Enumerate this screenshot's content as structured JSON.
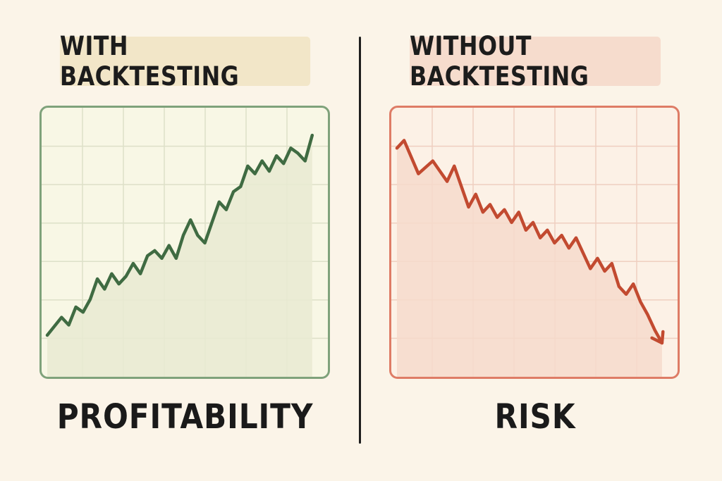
{
  "panels": [
    {
      "banner": "WITH BACKTESTING",
      "caption": "PROFITABILITY",
      "colors": {
        "line": "#3f6b42",
        "fill": "#e9ead2",
        "grid": "#dde0c8"
      },
      "icon": null
    },
    {
      "banner": "WITHOUT BACKTESTING",
      "caption": "RISK",
      "colors": {
        "line": "#c24a30",
        "fill": "#f6dacb",
        "grid": "#efcfc0"
      },
      "icon": "arrow-down-icon"
    }
  ],
  "chart_data": [
    {
      "type": "line",
      "trend": "up",
      "area_fill": true,
      "grid": true,
      "xlim": [
        0,
        38
      ],
      "ylim": [
        0,
        100
      ],
      "x": [
        0,
        2,
        3,
        4,
        5,
        6,
        7,
        8,
        9,
        10,
        11,
        12,
        13,
        14,
        15,
        16,
        17,
        18,
        19,
        20,
        21,
        22,
        23,
        24,
        25,
        26,
        27,
        28,
        29,
        30,
        31,
        32,
        33,
        34,
        35,
        36,
        37
      ],
      "values": [
        14,
        21,
        18,
        25,
        23,
        28,
        36,
        32,
        38,
        34,
        37,
        42,
        38,
        45,
        47,
        44,
        49,
        44,
        53,
        59,
        53,
        50,
        58,
        66,
        63,
        70,
        72,
        80,
        77,
        82,
        78,
        84,
        81,
        87,
        85,
        82,
        92
      ]
    },
    {
      "type": "line",
      "trend": "down",
      "area_fill": true,
      "grid": true,
      "arrow_end": true,
      "xlim": [
        0,
        38
      ],
      "ylim": [
        0,
        100
      ],
      "x": [
        0,
        1,
        3,
        5,
        7,
        8,
        10,
        11,
        12,
        13,
        14,
        15,
        16,
        17,
        18,
        19,
        20,
        21,
        22,
        23,
        24,
        25,
        26,
        27,
        28,
        29,
        30,
        31,
        32,
        33,
        34,
        35,
        36,
        37
      ],
      "values": [
        87,
        90,
        77,
        82,
        74,
        80,
        64,
        69,
        62,
        65,
        60,
        63,
        58,
        62,
        55,
        58,
        52,
        55,
        50,
        53,
        48,
        52,
        46,
        40,
        44,
        39,
        42,
        33,
        30,
        34,
        27,
        22,
        16,
        11
      ]
    }
  ]
}
